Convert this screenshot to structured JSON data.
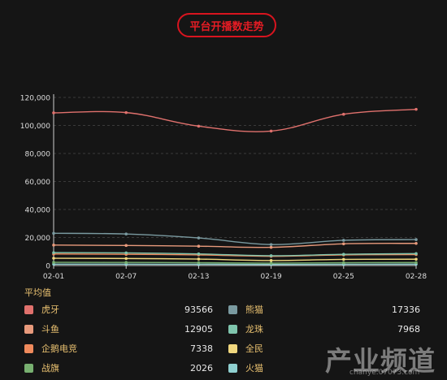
{
  "title": "平台开播数走势",
  "legend_title": "平均值",
  "colors": {
    "background": "#151515",
    "grid": "#3a3a3a",
    "axis_text": "#dddddd",
    "legend_text": "#e8c070"
  },
  "chart_data": {
    "type": "line",
    "x": [
      "02-01",
      "02-07",
      "02-13",
      "02-19",
      "02-25",
      "02-28"
    ],
    "y_ticks": [
      "0",
      "20,000",
      "40,000",
      "60,000",
      "80,000",
      "100,000",
      "120,000"
    ],
    "ylim": [
      0,
      120000
    ],
    "grid": true,
    "series": [
      {
        "name": "虎牙",
        "color": "#e0716d",
        "average": "93566",
        "values": [
          109000,
          109200,
          99500,
          96000,
          108000,
          111500
        ]
      },
      {
        "name": "熊猫",
        "color": "#7a9aa0",
        "average": "17336",
        "values": [
          23000,
          22500,
          19700,
          15000,
          18000,
          18500
        ]
      },
      {
        "name": "斗鱼",
        "color": "#e89a7c",
        "average": "12905",
        "values": [
          14600,
          14300,
          13800,
          13000,
          15500,
          15800
        ]
      },
      {
        "name": "龙珠",
        "color": "#7fc5ad",
        "average": "7968",
        "values": [
          9200,
          9000,
          8300,
          7000,
          8000,
          8500
        ]
      },
      {
        "name": "企鹅电竞",
        "color": "#ef8a5c",
        "average": "7338",
        "values": [
          8200,
          8000,
          7600,
          6600,
          7600,
          7800
        ]
      },
      {
        "name": "全民",
        "color": "#f0d77e",
        "average": "",
        "values": [
          5200,
          5000,
          4600,
          3600,
          4400,
          4500
        ]
      },
      {
        "name": "战旗",
        "color": "#78b070",
        "average": "2026",
        "values": [
          2300,
          2200,
          2000,
          1700,
          2000,
          2100
        ]
      },
      {
        "name": "火猫",
        "color": "#8fd0d0",
        "average": "",
        "values": [
          1000,
          950,
          900,
          800,
          900,
          950
        ]
      }
    ]
  },
  "watermark": {
    "text": "产业频道",
    "sub": "chanye.07073.com"
  }
}
